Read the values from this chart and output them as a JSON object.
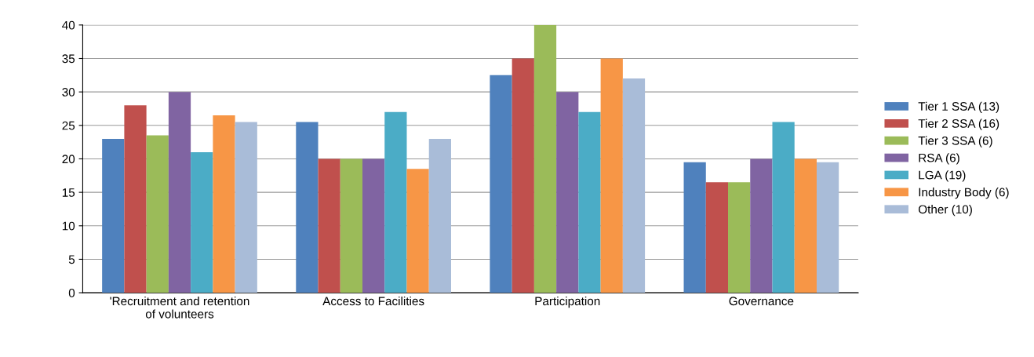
{
  "chart_data": {
    "type": "bar",
    "categories": [
      "'Recruitment and retention\nof volunteers",
      "Access to Facilities",
      "Participation",
      "Governance"
    ],
    "series": [
      {
        "name": "Tier 1 SSA (13)",
        "color": "#4f81bd",
        "values": [
          23,
          25.5,
          32.5,
          19.5
        ]
      },
      {
        "name": "Tier 2 SSA (16)",
        "color": "#c0504d",
        "values": [
          28,
          20,
          35,
          16.5
        ]
      },
      {
        "name": "Tier 3 SSA (6)",
        "color": "#9bbb59",
        "values": [
          23.5,
          20,
          40,
          16.5
        ]
      },
      {
        "name": "RSA (6)",
        "color": "#8064a2",
        "values": [
          30,
          20,
          30,
          20
        ]
      },
      {
        "name": "LGA (19)",
        "color": "#4bacc6",
        "values": [
          21,
          27,
          27,
          25.5
        ]
      },
      {
        "name": "Industry Body (6)",
        "color": "#f79646",
        "values": [
          26.5,
          18.5,
          35,
          20
        ]
      },
      {
        "name": "Other (10)",
        "color": "#a9bcd8",
        "values": [
          25.5,
          23,
          32,
          19.5
        ]
      }
    ],
    "ylim": [
      0,
      40
    ],
    "yticks": [
      0,
      5,
      10,
      15,
      20,
      25,
      30,
      35,
      40
    ],
    "grid": "y",
    "legend": "right"
  }
}
